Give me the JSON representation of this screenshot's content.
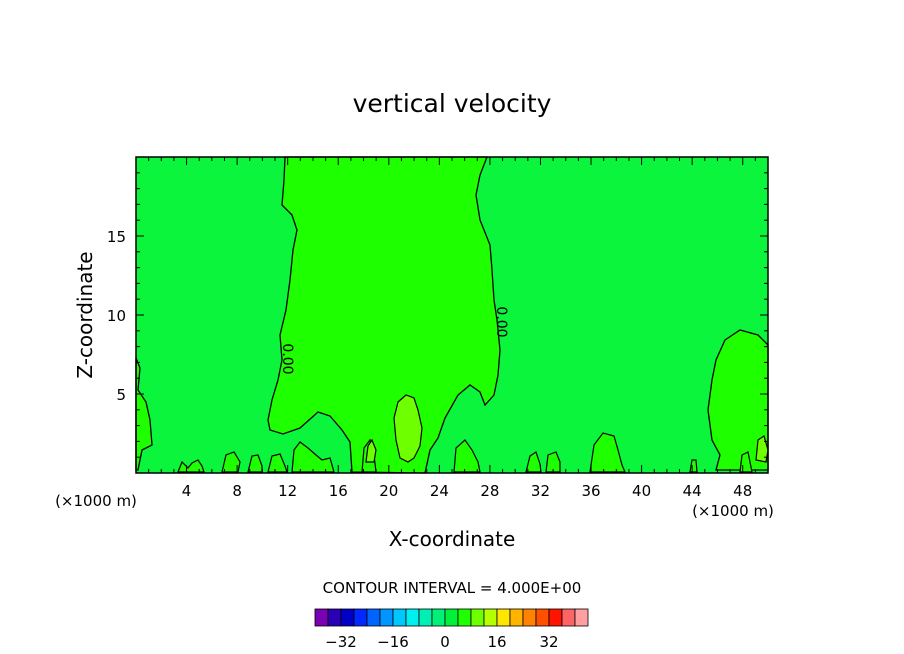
{
  "chart_data": {
    "type": "heatmap",
    "title": "vertical velocity",
    "xlabel": "X-coordinate",
    "ylabel": "Z-coordinate",
    "x_unit_left": "(×1000 m)",
    "x_unit_right": "(×1000 m)",
    "xlim": [
      0,
      50
    ],
    "ylim": [
      0,
      20
    ],
    "x_ticks": [
      4,
      8,
      12,
      16,
      20,
      24,
      28,
      32,
      36,
      40,
      44,
      48
    ],
    "y_ticks": [
      5,
      10,
      15
    ],
    "contour_labels": [
      {
        "text": "0.00",
        "x": 11.5,
        "y": 7.3
      },
      {
        "text": "0.00",
        "x": 29.3,
        "y": 9.4
      }
    ],
    "contour_interval_text": "CONTOUR INTERVAL = 4.000E+00",
    "colorbar": {
      "levels": [
        -36,
        -32,
        -28,
        -24,
        -20,
        -16,
        -12,
        -8,
        -4,
        0,
        4,
        8,
        12,
        16,
        20,
        24,
        28,
        32,
        36
      ],
      "colors": [
        "#7a00b4",
        "#2a00b4",
        "#0000c8",
        "#0028ff",
        "#0064ff",
        "#0096ff",
        "#00c8ff",
        "#00f0f0",
        "#00f0b4",
        "#00f078",
        "#00f03c",
        "#1eff00",
        "#6eff00",
        "#b4ff00",
        "#ffe600",
        "#ffb400",
        "#ff8200",
        "#ff5000",
        "#ff1400",
        "#ff6464",
        "#ffa0a0"
      ],
      "tick_labels": [
        "-32",
        "-16",
        "0",
        "16",
        "32"
      ],
      "tick_values": [
        -32,
        -16,
        0,
        16,
        32
      ]
    },
    "field": {
      "background_level": "0 to 4",
      "background_color": "#1eff00",
      "inner_color": "#6eff00",
      "inner_regions": "8 to 12 (small cells near x≈21, x≈18, x≈49)"
    },
    "grid": false,
    "legend": "bottom colorbar"
  }
}
